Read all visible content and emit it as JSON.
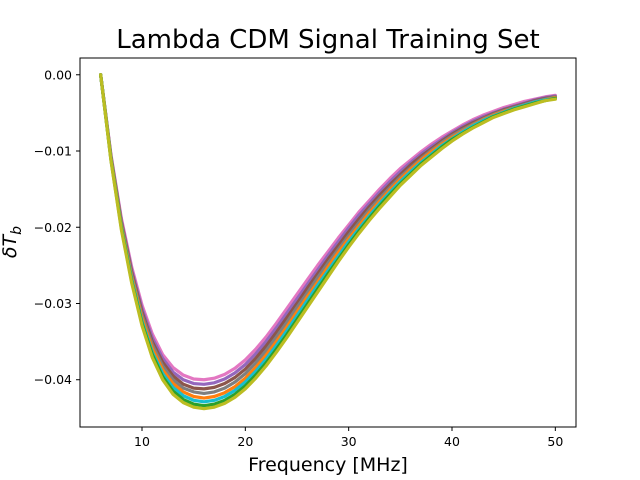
{
  "chart_data": {
    "type": "line",
    "title": "Lambda CDM Signal Training Set",
    "xlabel": "Frequency [MHz]",
    "ylabel": "δT_b",
    "ylabel_parts": {
      "base": "δT",
      "sub": "b"
    },
    "xlim": [
      4.0,
      52.0
    ],
    "ylim": [
      -0.0462,
      0.0022
    ],
    "xticks": [
      {
        "value": 10,
        "label": "10"
      },
      {
        "value": 20,
        "label": "20"
      },
      {
        "value": 30,
        "label": "30"
      },
      {
        "value": 40,
        "label": "40"
      },
      {
        "value": 50,
        "label": "50"
      }
    ],
    "yticks": [
      {
        "value": 0.0,
        "label": "0.00"
      },
      {
        "value": -0.01,
        "label": "−0.01"
      },
      {
        "value": -0.02,
        "label": "−0.02"
      },
      {
        "value": -0.03,
        "label": "−0.03"
      },
      {
        "value": -0.04,
        "label": "−0.04"
      }
    ],
    "grid": false,
    "legend": "none",
    "x": [
      6,
      7,
      8,
      9,
      10,
      11,
      12,
      13,
      14,
      15,
      16,
      17,
      18,
      19,
      20,
      21,
      22,
      23,
      24,
      25,
      26,
      27,
      28,
      29,
      30,
      31,
      32,
      33,
      34,
      35,
      36,
      37,
      38,
      39,
      40,
      41,
      42,
      43,
      44,
      45,
      46,
      47,
      48,
      49,
      50
    ],
    "series": [
      {
        "color": "#e377c2",
        "values": [
          0.0,
          -0.0105,
          -0.0188,
          -0.0252,
          -0.0302,
          -0.034,
          -0.0367,
          -0.0384,
          -0.0394,
          -0.0399,
          -0.04,
          -0.0398,
          -0.0393,
          -0.0385,
          -0.0374,
          -0.036,
          -0.0344,
          -0.0326,
          -0.0307,
          -0.0288,
          -0.0269,
          -0.025,
          -0.0232,
          -0.0214,
          -0.0197,
          -0.018,
          -0.0165,
          -0.015,
          -0.0136,
          -0.0123,
          -0.0112,
          -0.0101,
          -0.0091,
          -0.0082,
          -0.0074,
          -0.0066,
          -0.0059,
          -0.0053,
          -0.0048,
          -0.0043,
          -0.0039,
          -0.0035,
          -0.0032,
          -0.0029,
          -0.0027
        ]
      },
      {
        "color": "#9467bd",
        "values": [
          0.0,
          -0.0107,
          -0.0191,
          -0.0256,
          -0.0307,
          -0.0345,
          -0.0372,
          -0.039,
          -0.04,
          -0.0405,
          -0.0406,
          -0.0404,
          -0.0399,
          -0.0391,
          -0.038,
          -0.0366,
          -0.035,
          -0.0332,
          -0.0313,
          -0.0294,
          -0.0275,
          -0.0256,
          -0.0237,
          -0.0219,
          -0.0201,
          -0.0184,
          -0.0169,
          -0.0154,
          -0.014,
          -0.0127,
          -0.0115,
          -0.0104,
          -0.0094,
          -0.0085,
          -0.0076,
          -0.0068,
          -0.0061,
          -0.0055,
          -0.005,
          -0.0045,
          -0.0041,
          -0.0037,
          -0.0033,
          -0.003,
          -0.0028
        ]
      },
      {
        "color": "#8c564b",
        "values": [
          0.0,
          -0.0108,
          -0.0193,
          -0.0259,
          -0.0311,
          -0.035,
          -0.0377,
          -0.0395,
          -0.0406,
          -0.0411,
          -0.0412,
          -0.041,
          -0.0405,
          -0.0397,
          -0.0386,
          -0.0372,
          -0.0356,
          -0.0338,
          -0.0319,
          -0.03,
          -0.028,
          -0.0261,
          -0.0242,
          -0.0224,
          -0.0206,
          -0.0189,
          -0.0173,
          -0.0158,
          -0.0144,
          -0.0131,
          -0.0118,
          -0.0107,
          -0.0097,
          -0.0087,
          -0.0078,
          -0.007,
          -0.0063,
          -0.0057,
          -0.0051,
          -0.0046,
          -0.0042,
          -0.0038,
          -0.0034,
          -0.0031,
          -0.0029
        ]
      },
      {
        "color": "#7f7f7f",
        "values": [
          0.0,
          -0.0109,
          -0.0195,
          -0.0262,
          -0.0315,
          -0.0354,
          -0.0382,
          -0.04,
          -0.0411,
          -0.0416,
          -0.0418,
          -0.0416,
          -0.0411,
          -0.0403,
          -0.0392,
          -0.0378,
          -0.0362,
          -0.0344,
          -0.0325,
          -0.0305,
          -0.0286,
          -0.0266,
          -0.0247,
          -0.0229,
          -0.0211,
          -0.0194,
          -0.0177,
          -0.0162,
          -0.0148,
          -0.0134,
          -0.0122,
          -0.011,
          -0.0099,
          -0.0089,
          -0.008,
          -0.0072,
          -0.0065,
          -0.0058,
          -0.0052,
          -0.0047,
          -0.0043,
          -0.0039,
          -0.0035,
          -0.0032,
          -0.0029
        ]
      },
      {
        "color": "#ff7f0e",
        "values": [
          0.0,
          -0.011,
          -0.0197,
          -0.0265,
          -0.0319,
          -0.0359,
          -0.0387,
          -0.0405,
          -0.0416,
          -0.0422,
          -0.0424,
          -0.0422,
          -0.0417,
          -0.0409,
          -0.0398,
          -0.0384,
          -0.0368,
          -0.035,
          -0.0331,
          -0.0311,
          -0.0291,
          -0.0272,
          -0.0252,
          -0.0233,
          -0.0215,
          -0.0198,
          -0.0181,
          -0.0166,
          -0.0151,
          -0.0137,
          -0.0124,
          -0.0112,
          -0.0101,
          -0.0091,
          -0.0082,
          -0.0074,
          -0.0066,
          -0.0059,
          -0.0053,
          -0.0048,
          -0.0044,
          -0.004,
          -0.0036,
          -0.0033,
          -0.003
        ]
      },
      {
        "color": "#17becf",
        "values": [
          0.0,
          -0.0111,
          -0.0199,
          -0.0268,
          -0.0323,
          -0.0364,
          -0.0392,
          -0.041,
          -0.0421,
          -0.0427,
          -0.0429,
          -0.0427,
          -0.0422,
          -0.0414,
          -0.0403,
          -0.0389,
          -0.0373,
          -0.0355,
          -0.0336,
          -0.0316,
          -0.0296,
          -0.0276,
          -0.0257,
          -0.0238,
          -0.0219,
          -0.0202,
          -0.0185,
          -0.0169,
          -0.0154,
          -0.014,
          -0.0127,
          -0.0115,
          -0.0104,
          -0.0093,
          -0.0084,
          -0.0075,
          -0.0067,
          -0.006,
          -0.0054,
          -0.0049,
          -0.0044,
          -0.004,
          -0.0036,
          -0.0033,
          -0.0031
        ]
      },
      {
        "color": "#2ca02c",
        "values": [
          0.0,
          -0.0112,
          -0.0201,
          -0.0271,
          -0.0326,
          -0.0367,
          -0.0396,
          -0.0415,
          -0.0426,
          -0.0432,
          -0.0434,
          -0.0432,
          -0.0427,
          -0.0419,
          -0.0408,
          -0.0394,
          -0.0378,
          -0.036,
          -0.0341,
          -0.0321,
          -0.0301,
          -0.0281,
          -0.0261,
          -0.0242,
          -0.0223,
          -0.0205,
          -0.0188,
          -0.0172,
          -0.0157,
          -0.0143,
          -0.013,
          -0.0117,
          -0.0106,
          -0.0095,
          -0.0085,
          -0.0077,
          -0.0069,
          -0.0062,
          -0.0055,
          -0.005,
          -0.0045,
          -0.0041,
          -0.0037,
          -0.0034,
          -0.0031
        ]
      },
      {
        "color": "#bcbd22",
        "values": [
          0.0,
          -0.0113,
          -0.0203,
          -0.0273,
          -0.0329,
          -0.0371,
          -0.04,
          -0.0419,
          -0.043,
          -0.0436,
          -0.0438,
          -0.0436,
          -0.0431,
          -0.0423,
          -0.0412,
          -0.0398,
          -0.0382,
          -0.0364,
          -0.0345,
          -0.0325,
          -0.0305,
          -0.0285,
          -0.0265,
          -0.0245,
          -0.0226,
          -0.0208,
          -0.0191,
          -0.0175,
          -0.016,
          -0.0145,
          -0.0132,
          -0.0119,
          -0.0108,
          -0.0097,
          -0.0087,
          -0.0078,
          -0.007,
          -0.0063,
          -0.0056,
          -0.0051,
          -0.0046,
          -0.0042,
          -0.0038,
          -0.0034,
          -0.0032
        ]
      }
    ]
  }
}
